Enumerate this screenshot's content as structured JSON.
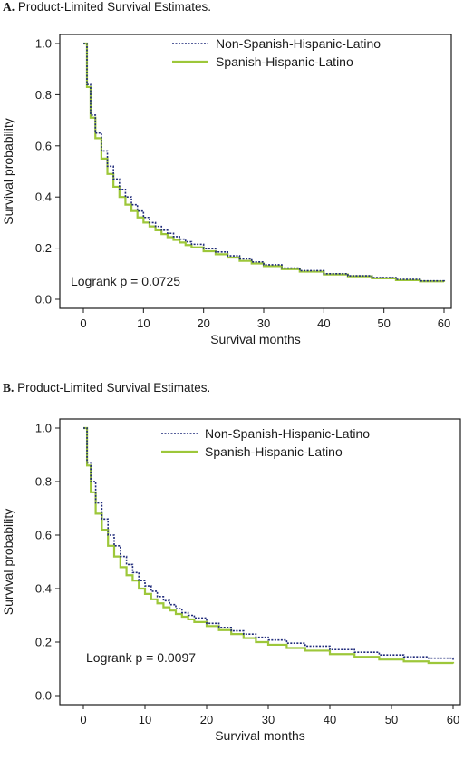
{
  "chart_data": [
    {
      "panel_letter": "A.",
      "title": "Product-Limited Survival Estimates.",
      "type": "line",
      "xlabel": "Survival months",
      "ylabel": "Survival probability",
      "xlim": [
        0,
        60
      ],
      "ylim": [
        0,
        1.0
      ],
      "xticks": [
        0,
        10,
        20,
        30,
        40,
        50,
        60
      ],
      "yticks": [
        "0.0",
        "0.2",
        "0.4",
        "0.6",
        "0.8",
        "1.0"
      ],
      "legend_position": "top-right",
      "annotation": "Logrank p = 0.0725",
      "series": [
        {
          "name": "Non-Spanish-Hispanic-Latino",
          "color": "#1f2a7a",
          "style": "dotted",
          "x": [
            0,
            0.6,
            1.2,
            2,
            3,
            4,
            5,
            6,
            7,
            8,
            9,
            10,
            11,
            12,
            13,
            14,
            15,
            16,
            17,
            18,
            20,
            22,
            24,
            26,
            28,
            30,
            33,
            36,
            40,
            44,
            48,
            52,
            56,
            60
          ],
          "y": [
            1.0,
            0.84,
            0.72,
            0.65,
            0.58,
            0.52,
            0.47,
            0.43,
            0.4,
            0.37,
            0.345,
            0.32,
            0.3,
            0.285,
            0.27,
            0.258,
            0.245,
            0.235,
            0.225,
            0.215,
            0.198,
            0.185,
            0.17,
            0.158,
            0.146,
            0.135,
            0.122,
            0.112,
            0.1,
            0.092,
            0.085,
            0.078,
            0.072,
            0.07
          ]
        },
        {
          "name": "Spanish-Hispanic-Latino",
          "color": "#9dc73a",
          "style": "solid",
          "x": [
            0,
            0.6,
            1.2,
            2,
            3,
            4,
            5,
            6,
            7,
            8,
            9,
            10,
            11,
            12,
            13,
            14,
            15,
            16,
            17,
            18,
            20,
            22,
            24,
            26,
            28,
            30,
            33,
            36,
            40,
            44,
            48,
            52,
            56,
            60
          ],
          "y": [
            1.0,
            0.83,
            0.71,
            0.63,
            0.55,
            0.49,
            0.44,
            0.4,
            0.37,
            0.345,
            0.32,
            0.3,
            0.285,
            0.27,
            0.255,
            0.243,
            0.232,
            0.222,
            0.212,
            0.203,
            0.188,
            0.176,
            0.163,
            0.15,
            0.14,
            0.13,
            0.118,
            0.108,
            0.097,
            0.09,
            0.082,
            0.075,
            0.07,
            0.068
          ]
        }
      ]
    },
    {
      "panel_letter": "B.",
      "title": "Product-Limited Survival Estimates.",
      "type": "line",
      "xlabel": "Survival months",
      "ylabel": "Survival probability",
      "xlim": [
        0,
        60
      ],
      "ylim": [
        0,
        1.0
      ],
      "xticks": [
        0,
        10,
        20,
        30,
        40,
        50,
        60
      ],
      "yticks": [
        "0.0",
        "0.2",
        "0.4",
        "0.6",
        "0.8",
        "1.0"
      ],
      "legend_position": "top-right",
      "annotation": "Logrank p = 0.0097",
      "series": [
        {
          "name": "Non-Spanish-Hispanic-Latino",
          "color": "#1f2a7a",
          "style": "dotted",
          "x": [
            0,
            0.6,
            1.2,
            2,
            3,
            4,
            5,
            6,
            7,
            8,
            9,
            10,
            11,
            12,
            13,
            14,
            15,
            16,
            17,
            18,
            20,
            22,
            24,
            26,
            28,
            30,
            33,
            36,
            40,
            44,
            48,
            52,
            56,
            60
          ],
          "y": [
            1.0,
            0.87,
            0.8,
            0.72,
            0.66,
            0.6,
            0.56,
            0.52,
            0.49,
            0.46,
            0.43,
            0.41,
            0.39,
            0.37,
            0.355,
            0.34,
            0.325,
            0.31,
            0.3,
            0.29,
            0.27,
            0.255,
            0.242,
            0.23,
            0.218,
            0.208,
            0.196,
            0.185,
            0.172,
            0.162,
            0.152,
            0.145,
            0.14,
            0.13
          ]
        },
        {
          "name": "Spanish-Hispanic-Latino",
          "color": "#9dc73a",
          "style": "solid",
          "x": [
            0,
            0.6,
            1.2,
            2,
            3,
            4,
            5,
            6,
            7,
            8,
            9,
            10,
            11,
            12,
            13,
            14,
            15,
            16,
            17,
            18,
            20,
            22,
            24,
            26,
            28,
            30,
            33,
            36,
            40,
            44,
            48,
            52,
            56,
            60
          ],
          "y": [
            1.0,
            0.86,
            0.76,
            0.68,
            0.62,
            0.56,
            0.52,
            0.48,
            0.45,
            0.43,
            0.4,
            0.38,
            0.36,
            0.345,
            0.33,
            0.318,
            0.305,
            0.295,
            0.285,
            0.275,
            0.26,
            0.245,
            0.23,
            0.215,
            0.2,
            0.19,
            0.178,
            0.168,
            0.155,
            0.145,
            0.135,
            0.128,
            0.122,
            0.12
          ]
        }
      ]
    }
  ]
}
